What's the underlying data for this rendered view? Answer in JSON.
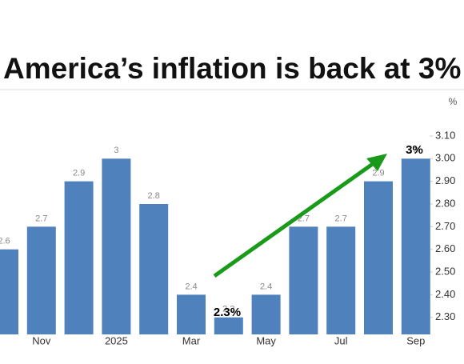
{
  "chart_data": {
    "type": "bar",
    "title": "America’s inflation is back at 3%",
    "y_unit": "%",
    "categories": [
      null,
      "Nov",
      null,
      "2025",
      null,
      "Mar",
      null,
      "May",
      null,
      "Jul",
      null,
      "Sep"
    ],
    "values": [
      2.6,
      2.7,
      2.9,
      3,
      2.8,
      2.4,
      2.3,
      2.4,
      2.7,
      2.7,
      2.9,
      3
    ],
    "color": "#4f81bd",
    "ylim": [
      2.225,
      3.175
    ],
    "yticks": [
      {
        "value": 2.3,
        "label": "2.30"
      },
      {
        "value": 2.4,
        "label": "2.40"
      },
      {
        "value": 2.5,
        "label": "2.50"
      },
      {
        "value": 2.6,
        "label": "2.60"
      },
      {
        "value": 2.7,
        "label": "2.70"
      },
      {
        "value": 2.8,
        "label": "2.80"
      },
      {
        "value": 2.9,
        "label": "2.90"
      },
      {
        "value": 3.0,
        "label": "3.00"
      },
      {
        "value": 3.1,
        "label": "3.10"
      }
    ],
    "grid": false,
    "annotations": [
      {
        "text": "3%"
      },
      {
        "text": "2.3%"
      }
    ]
  }
}
